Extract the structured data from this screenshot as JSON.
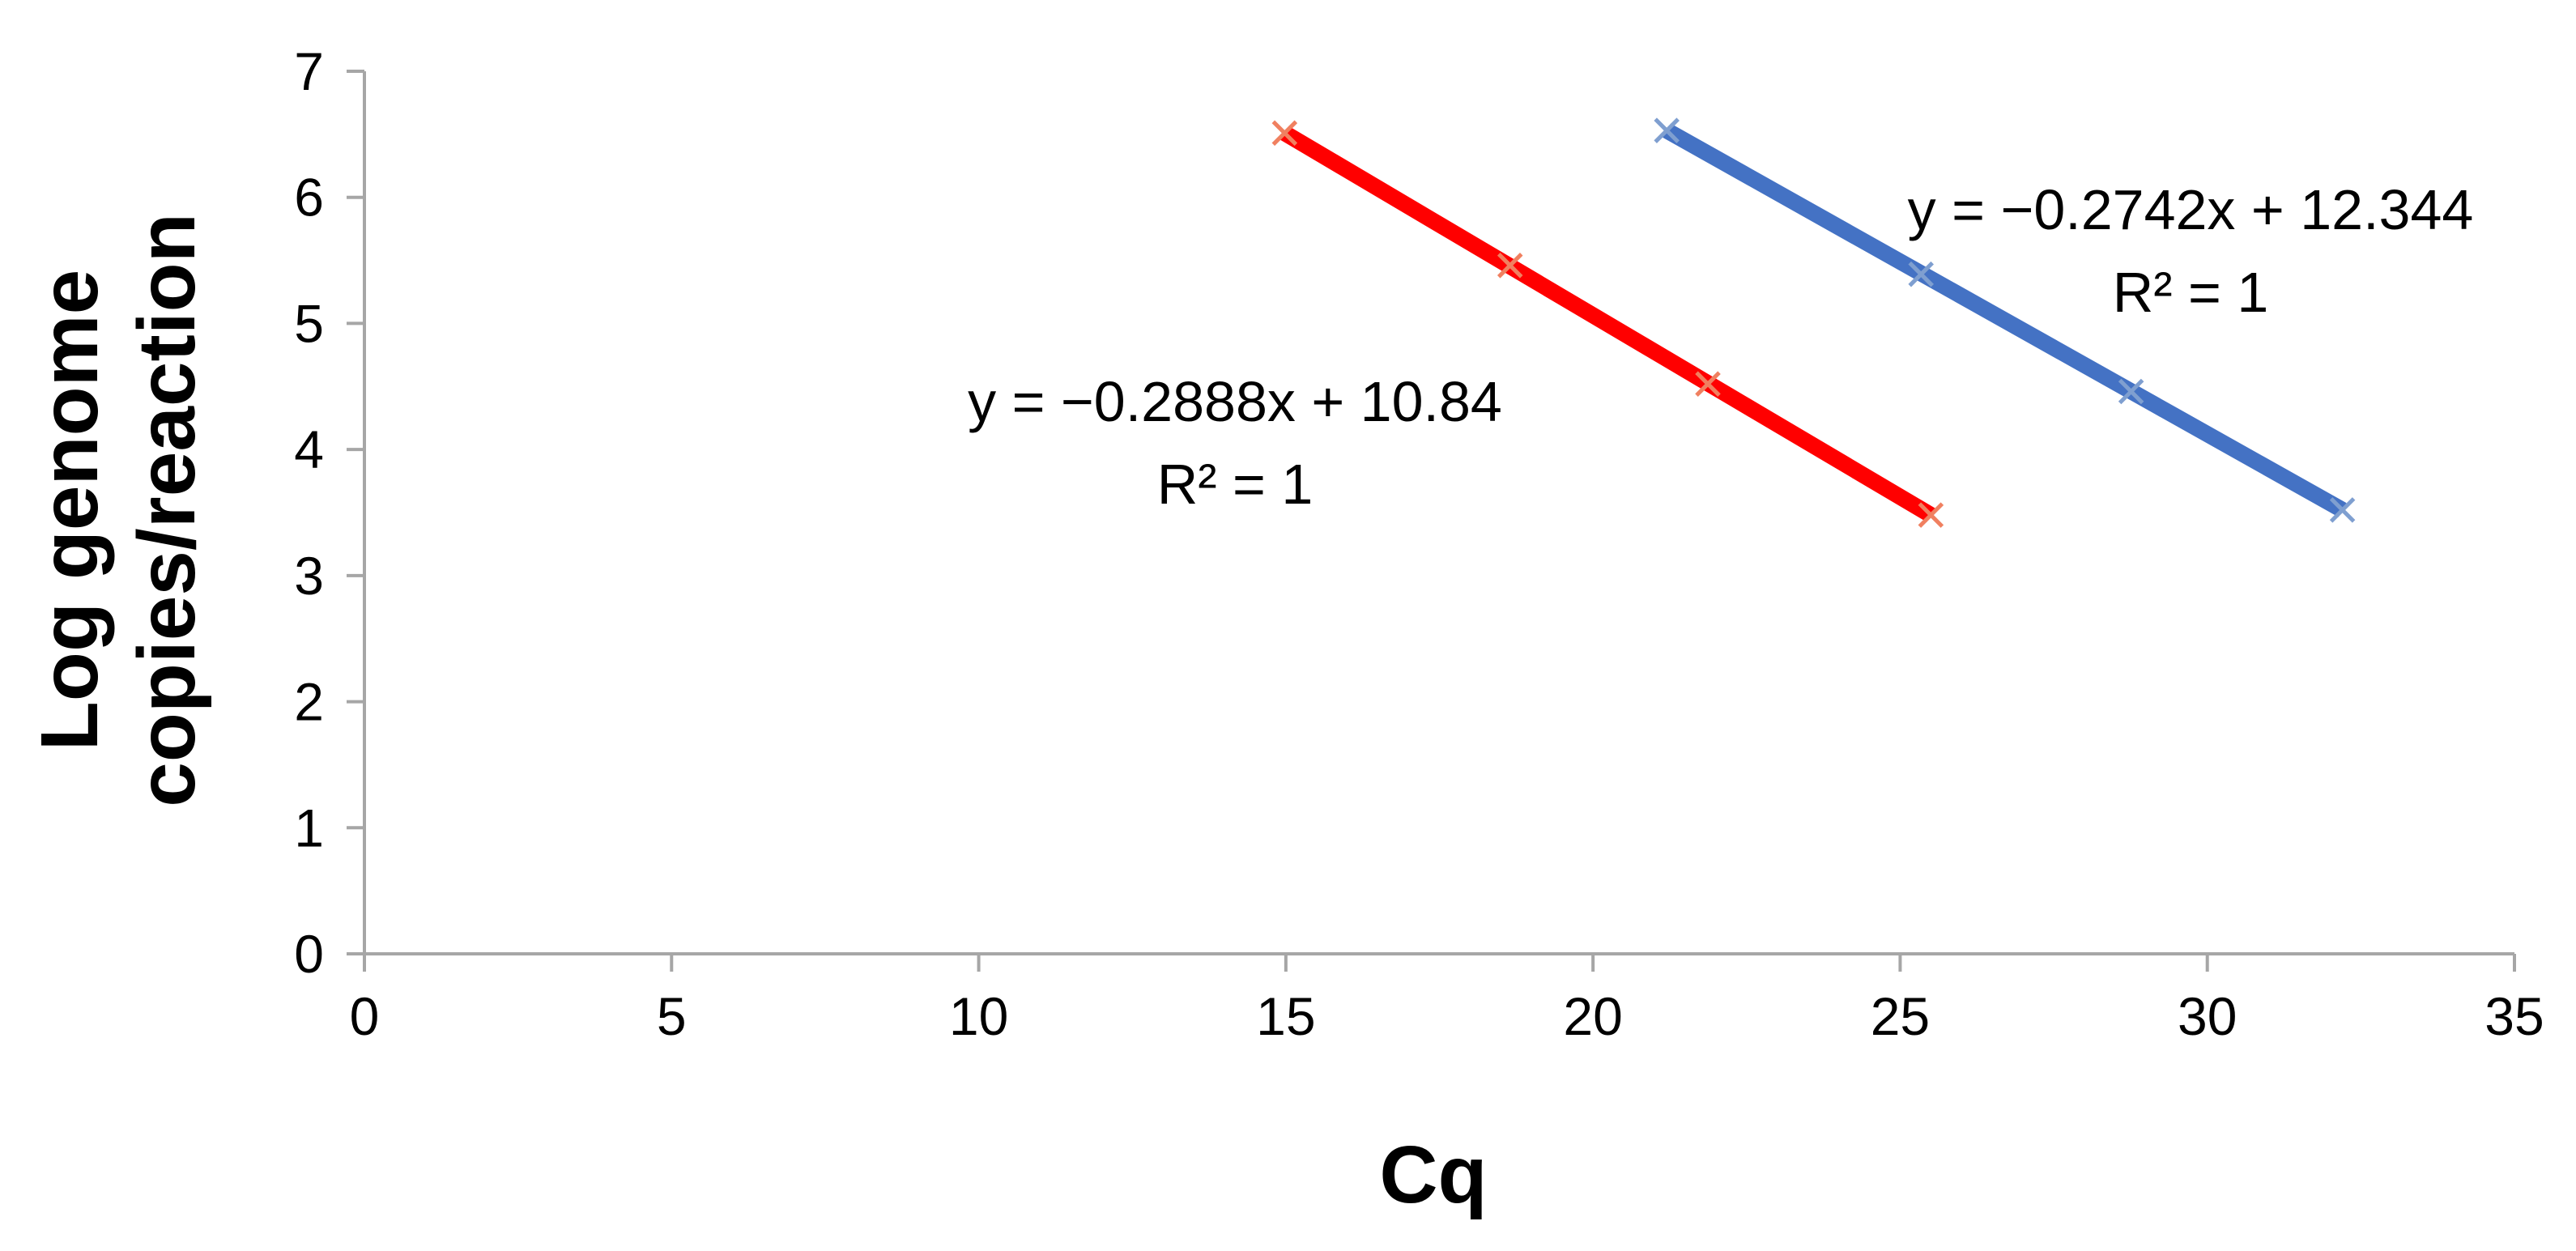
{
  "chart_data": {
    "type": "scatter",
    "title": "",
    "xlabel": "Cq",
    "ylabel_lines": [
      "Log genome",
      "copies/reaction"
    ],
    "xlim": [
      0,
      35
    ],
    "ylim": [
      0,
      7
    ],
    "xticks": [
      "0",
      "5",
      "10",
      "15",
      "20",
      "25",
      "30",
      "35"
    ],
    "yticks": [
      "0",
      "1",
      "2",
      "3",
      "4",
      "5",
      "6",
      "7"
    ],
    "grid": false,
    "legend": "none",
    "series": [
      {
        "color": "#ff0000",
        "marker_color": "#f08060",
        "trendline": "linear",
        "points": [
          {
            "x": 14.98,
            "y": 6.51
          },
          {
            "x": 18.65,
            "y": 5.46
          },
          {
            "x": 21.87,
            "y": 4.52
          },
          {
            "x": 25.5,
            "y": 3.48
          }
        ],
        "equation": "y = −0.2888x + 10.84",
        "r2": "R² = 1"
      },
      {
        "color": "#4472c4",
        "marker_color": "#7f9fd0",
        "trendline": "linear",
        "points": [
          {
            "x": 21.2,
            "y": 6.53
          },
          {
            "x": 25.34,
            "y": 5.39
          },
          {
            "x": 28.76,
            "y": 4.46
          },
          {
            "x": 32.2,
            "y": 3.52
          }
        ],
        "equation": "y = −0.2742x + 12.344",
        "r2": "R² = 1"
      }
    ]
  }
}
